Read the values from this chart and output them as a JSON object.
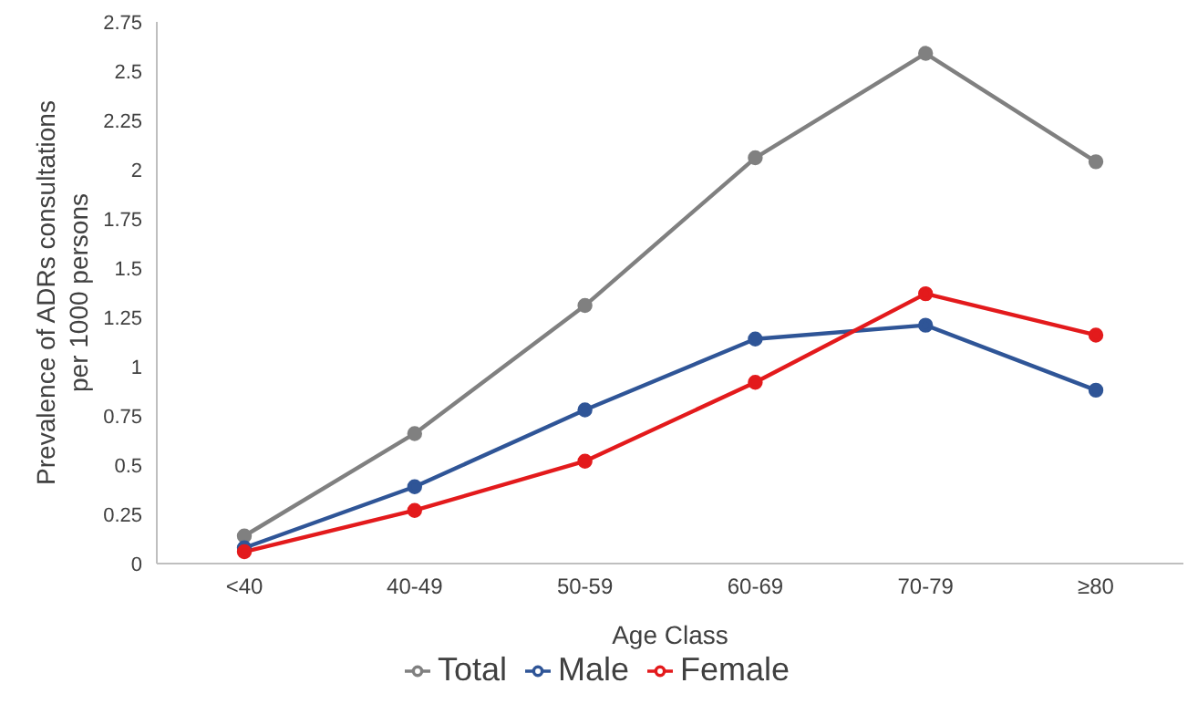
{
  "chart_data": {
    "type": "line",
    "xlabel": "Age Class",
    "ylabel": "Prevalence of ADRs consultations per 1000 persons",
    "categories": [
      "<40",
      "40-49",
      "50-59",
      "60-69",
      "70-79",
      "≥80"
    ],
    "series": [
      {
        "name": "Total",
        "color": "#808080",
        "values": [
          0.14,
          0.66,
          1.31,
          2.06,
          2.59,
          2.04
        ]
      },
      {
        "name": "Male",
        "color": "#2f5597",
        "values": [
          0.08,
          0.39,
          0.78,
          1.14,
          1.21,
          0.88
        ]
      },
      {
        "name": "Female",
        "color": "#e31a1c",
        "values": [
          0.06,
          0.27,
          0.52,
          0.92,
          1.37,
          1.16
        ]
      }
    ],
    "ylim": [
      0,
      2.75
    ],
    "yticks": [
      0,
      0.25,
      0.5,
      0.75,
      1,
      1.25,
      1.5,
      1.75,
      2,
      2.25,
      2.5,
      2.75
    ],
    "grid": false,
    "legend": "bottom",
    "marker": "circle",
    "line_style": "solid"
  }
}
